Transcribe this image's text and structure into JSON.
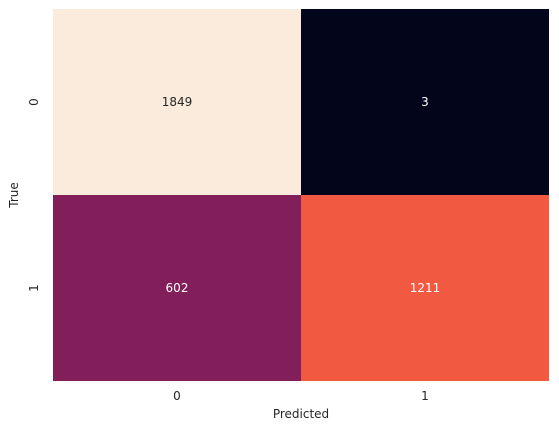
{
  "chart_data": {
    "type": "heatmap",
    "xlabel": "Predicted",
    "ylabel": "True",
    "x_categories": [
      "0",
      "1"
    ],
    "y_categories": [
      "0",
      "1"
    ],
    "values": [
      [
        1849,
        3
      ],
      [
        602,
        1211
      ]
    ],
    "colorbar": false,
    "colors": {
      "low": "#03051a",
      "mid_low": "#841e5a",
      "mid_high": "#f15a40",
      "high": "#faebdd",
      "text_on_dark": "#ffffff",
      "text_on_light": "#262626"
    }
  }
}
